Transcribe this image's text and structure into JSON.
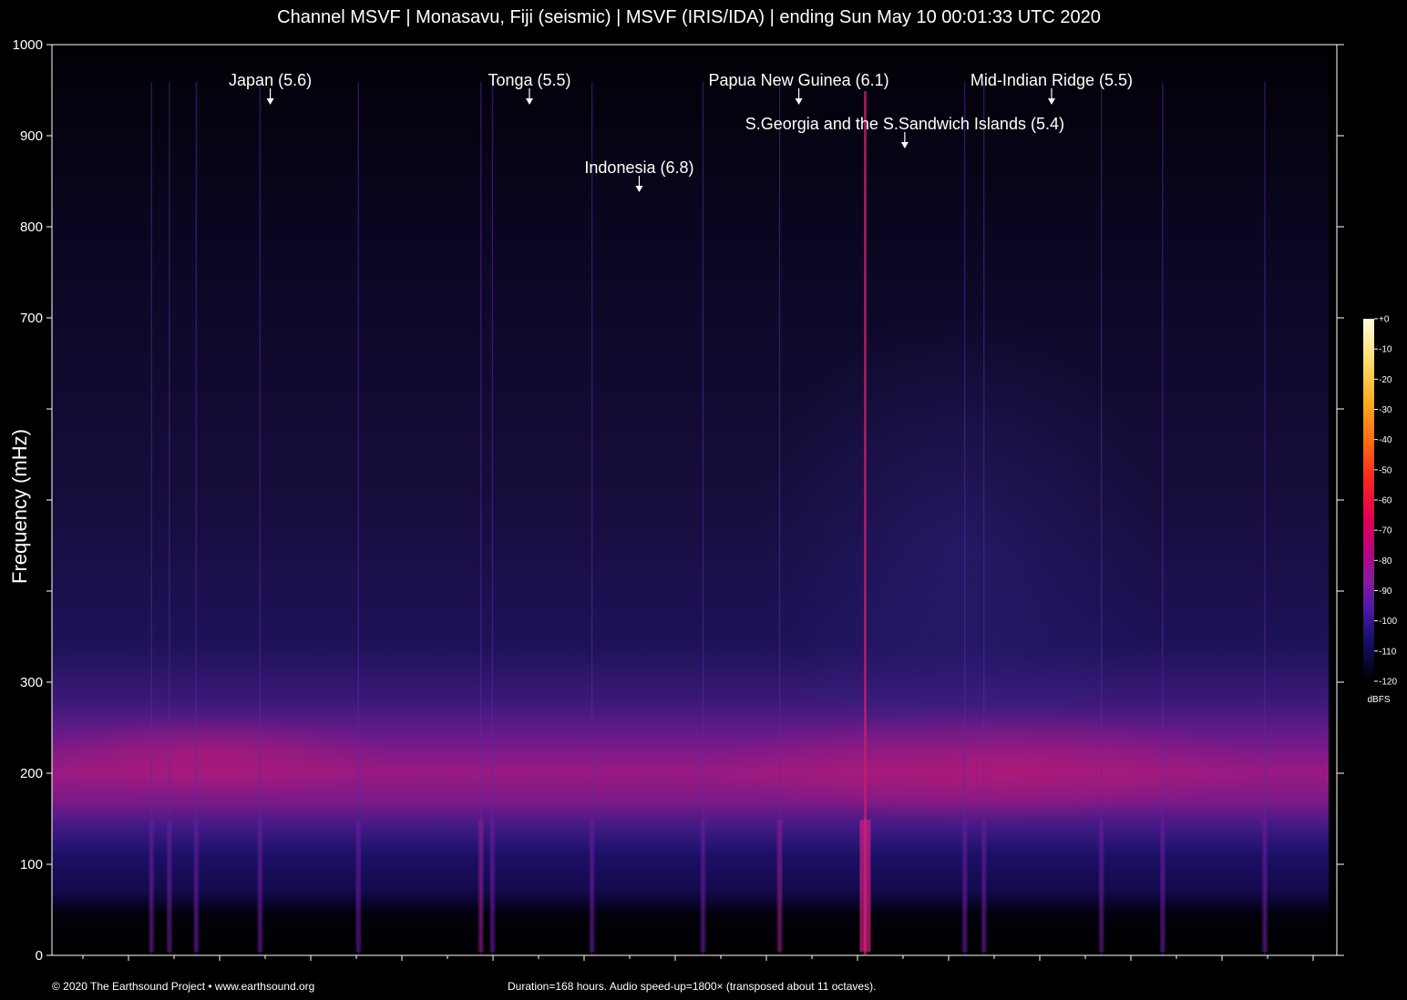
{
  "chart_data": {
    "type": "heatmap",
    "title": "Channel MSVF | Monasavu, Fiji (seismic) | MSVF (IRIS/IDA) | ending Sun May 10 00:01:33 UTC 2020",
    "ylabel": "Frequency (mHz)",
    "xlabel": "",
    "ylim": [
      0,
      1000
    ],
    "y_ticks": [
      {
        "value": 0,
        "label": "0"
      },
      {
        "value": 100,
        "label": "100"
      },
      {
        "value": 200,
        "label": "200"
      },
      {
        "value": 300,
        "label": "300"
      },
      {
        "value": 400,
        "label": ""
      },
      {
        "value": 500,
        "label": ""
      },
      {
        "value": 600,
        "label": ""
      },
      {
        "value": 700,
        "label": "700"
      },
      {
        "value": 800,
        "label": "800"
      },
      {
        "value": 900,
        "label": "900"
      },
      {
        "value": 1000,
        "label": "1000"
      }
    ],
    "duration_hours": 168,
    "x_ticks_count": 28,
    "noise_band_mhz": [
      150,
      250
    ],
    "annotations": [
      {
        "label": "Japan (5.6)",
        "time_fraction": 0.171,
        "row": 0
      },
      {
        "label": "Tonga (5.5)",
        "time_fraction": 0.374,
        "row": 0
      },
      {
        "label": "Papua New Guinea (6.1)",
        "time_fraction": 0.585,
        "row": 0
      },
      {
        "label": "Mid-Indian Ridge (5.5)",
        "time_fraction": 0.783,
        "row": 0
      },
      {
        "label": "S.Georgia and the S.Sandwich Islands (5.4)",
        "time_fraction": 0.668,
        "row": 1
      },
      {
        "label": "Indonesia (6.8)",
        "time_fraction": 0.46,
        "row": 2
      }
    ],
    "events_time_fraction": [
      0.078,
      0.092,
      0.113,
      0.163,
      0.24,
      0.336,
      0.345,
      0.423,
      0.51,
      0.57,
      0.637,
      0.715,
      0.73,
      0.822,
      0.87,
      0.95
    ],
    "colorbar": {
      "unit": "dBFS",
      "range": [
        -120,
        0
      ],
      "ticks": [
        "+0",
        "-10",
        "-20",
        "-30",
        "-40",
        "-50",
        "-60",
        "-70",
        "-80",
        "-90",
        "-100",
        "-110",
        "-120"
      ],
      "colors": [
        "#fffbe0",
        "#ffe27a",
        "#ffb020",
        "#ff6a10",
        "#ff2020",
        "#e00050",
        "#c0007a",
        "#8a1aa0",
        "#4a1aa8",
        "#1a1070",
        "#080830",
        "#000000"
      ]
    }
  },
  "footer": {
    "copyright": "© 2020 The Earthsound Project • www.earthsound.org",
    "info": "Duration=168 hours. Audio speed-up=1800× (transposed about 11 octaves)."
  }
}
